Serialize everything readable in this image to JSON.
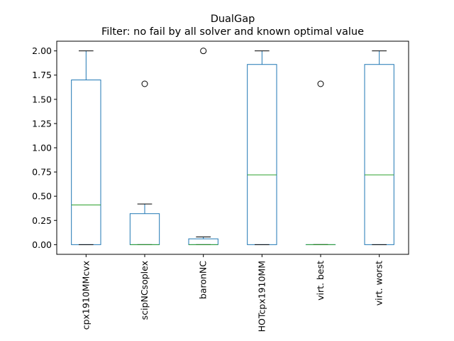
{
  "chart_data": {
    "type": "box",
    "title": "DualGap",
    "subtitle": "Filter: no fail by all solver and known optimal value",
    "xlabel": "",
    "ylabel": "",
    "ylim": [
      -0.1,
      2.1
    ],
    "yticks": [
      0.0,
      0.25,
      0.5,
      0.75,
      1.0,
      1.25,
      1.5,
      1.75,
      2.0
    ],
    "ytick_labels": [
      "0.00",
      "0.25",
      "0.50",
      "0.75",
      "1.00",
      "1.25",
      "1.50",
      "1.75",
      "2.00"
    ],
    "grid": false,
    "categories": [
      "cpx1910MMcvx",
      "scipNCsoplex",
      "baronNC",
      "HOTcpx1910MM",
      "virt. best",
      "virt. worst"
    ],
    "boxes": [
      {
        "whisker_low": 0.0,
        "q1": 0.0,
        "median": 0.41,
        "q3": 1.7,
        "whisker_high": 2.0,
        "outliers": []
      },
      {
        "whisker_low": 0.0,
        "q1": 0.0,
        "median": 0.0,
        "q3": 0.32,
        "whisker_high": 0.42,
        "outliers": [
          1.66
        ]
      },
      {
        "whisker_low": 0.0,
        "q1": 0.0,
        "median": 0.0,
        "q3": 0.06,
        "whisker_high": 0.08,
        "outliers": [
          2.0
        ]
      },
      {
        "whisker_low": 0.0,
        "q1": 0.0,
        "median": 0.72,
        "q3": 1.86,
        "whisker_high": 2.0,
        "outliers": []
      },
      {
        "whisker_low": 0.0,
        "q1": 0.0,
        "median": 0.0,
        "q3": 0.0,
        "whisker_high": 0.0,
        "outliers": [
          1.66
        ]
      },
      {
        "whisker_low": 0.0,
        "q1": 0.0,
        "median": 0.72,
        "q3": 1.86,
        "whisker_high": 2.0,
        "outliers": []
      }
    ],
    "colors": {
      "box": "#1f77b4",
      "median": "#2ca02c",
      "whisker_cap": "#000000",
      "outlier": "#000000"
    }
  }
}
